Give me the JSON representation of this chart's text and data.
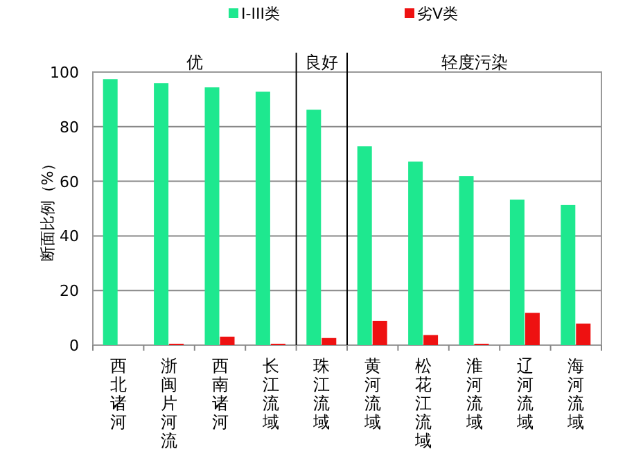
{
  "chart_data": {
    "type": "bar",
    "ylabel": "断面比例（%）",
    "categories": [
      "西北诸河",
      "浙闽片河流",
      "西南诸河",
      "长江流域",
      "珠江流域",
      "黄河流域",
      "松花江流域",
      "淮河流域",
      "辽河流域",
      "海河流域"
    ],
    "series": [
      {
        "name": "I-III类",
        "color": "#1ee88f",
        "values": [
          97.4,
          95.9,
          94.4,
          92.8,
          86.2,
          72.8,
          67.2,
          61.9,
          53.3,
          51.3
        ]
      },
      {
        "name": "劣V类",
        "color": "#ee1111",
        "values": [
          0,
          0.5,
          3.1,
          0.5,
          2.6,
          8.9,
          3.7,
          0.5,
          11.8,
          7.9
        ]
      }
    ],
    "annotations": [
      "优",
      "良好",
      "轻度污染"
    ],
    "ylim": [
      0,
      100
    ],
    "yticks": [
      0,
      20,
      40,
      60,
      80,
      100
    ],
    "grid": "y",
    "legend": "top"
  }
}
